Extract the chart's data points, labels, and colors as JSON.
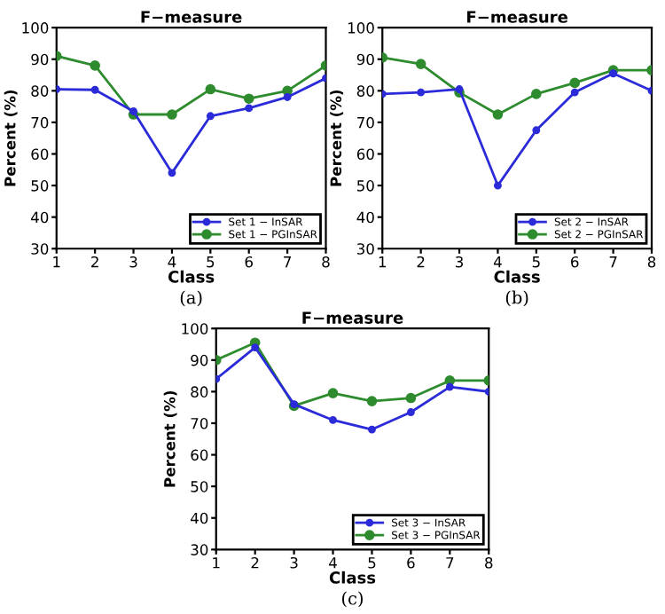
{
  "chart_data": [
    {
      "type": "line",
      "title": "F−measure",
      "xlabel": "Class",
      "ylabel": "Percent (%)",
      "x": [
        1,
        2,
        3,
        4,
        5,
        6,
        7,
        8
      ],
      "xlim": [
        1,
        8
      ],
      "xticks": [
        1,
        2,
        3,
        4,
        5,
        6,
        7,
        8
      ],
      "ylim": [
        30,
        100
      ],
      "yticks": [
        30,
        40,
        50,
        60,
        70,
        80,
        90,
        100
      ],
      "grid": false,
      "legend": "bottom right",
      "marker": "circle",
      "line_style": "solid",
      "annotations": [
        "(a)"
      ],
      "series": [
        {
          "name": "Set 1 − InSAR",
          "color": "#2b2bd9",
          "values": [
            80.5,
            80.3,
            73.5,
            54,
            72,
            74.5,
            78,
            84
          ]
        },
        {
          "name": "Set 1 − PGInSAR",
          "color": "#2e8b2e",
          "values": [
            91,
            88,
            72.5,
            72.5,
            80.5,
            77.5,
            80,
            88
          ]
        }
      ]
    },
    {
      "type": "line",
      "title": "F−measure",
      "xlabel": "Class",
      "ylabel": "Percent (%)",
      "x": [
        1,
        2,
        3,
        4,
        5,
        6,
        7,
        8
      ],
      "xlim": [
        1,
        8
      ],
      "xticks": [
        1,
        2,
        3,
        4,
        5,
        6,
        7,
        8
      ],
      "ylim": [
        30,
        100
      ],
      "yticks": [
        30,
        40,
        50,
        60,
        70,
        80,
        90,
        100
      ],
      "grid": false,
      "legend": "bottom right",
      "marker": "circle",
      "line_style": "solid",
      "annotations": [
        "(b)"
      ],
      "series": [
        {
          "name": "Set 2 − InSAR",
          "color": "#2b2bd9",
          "values": [
            79,
            79.5,
            80.5,
            50,
            67.5,
            79.5,
            85.5,
            80
          ]
        },
        {
          "name": "Set 2 − PGInSAR",
          "color": "#2e8b2e",
          "values": [
            90.5,
            88.5,
            79.5,
            72.5,
            79,
            82.5,
            86.5,
            86.5
          ]
        }
      ]
    },
    {
      "type": "line",
      "title": "F−measure",
      "xlabel": "Class",
      "ylabel": "Percent (%)",
      "x": [
        1,
        2,
        3,
        4,
        5,
        6,
        7,
        8
      ],
      "xlim": [
        1,
        8
      ],
      "xticks": [
        1,
        2,
        3,
        4,
        5,
        6,
        7,
        8
      ],
      "ylim": [
        30,
        100
      ],
      "yticks": [
        30,
        40,
        50,
        60,
        70,
        80,
        90,
        100
      ],
      "grid": false,
      "legend": "bottom right",
      "marker": "circle",
      "line_style": "solid",
      "annotations": [
        "(c)"
      ],
      "series": [
        {
          "name": "Set 3 − InSAR",
          "color": "#2b2bd9",
          "values": [
            84,
            94,
            76,
            71,
            68,
            73.5,
            81.5,
            80
          ]
        },
        {
          "name": "Set 3 − PGInSAR",
          "color": "#2e8b2e",
          "values": [
            90,
            95.5,
            75.5,
            79.5,
            77,
            78,
            83.5,
            83.5
          ]
        }
      ]
    }
  ]
}
